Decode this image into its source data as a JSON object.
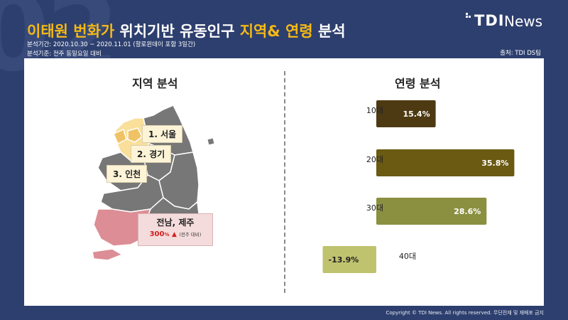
{
  "page": {
    "bg_number": "02",
    "title_highlight_1": "이태원 번화가",
    "title_mid": " 위치기반 유동인구 ",
    "title_highlight_2": "지역& 연령",
    "title_end": " 분석",
    "period": "분석기간: 2020.10.30 ~ 2020.11.01 (할로윈데이 포함 3일간)",
    "basis": "분석기준: 전주 동일요일 대비",
    "source": "출처: TDI DS팀",
    "footer": "Copyright © TDI News. All rights reserved. 무단전재 및 재배포 금지"
  },
  "logo": {
    "tdi": "TDI",
    "news": "News"
  },
  "region": {
    "title": "지역 분석",
    "callouts": [
      "1. 서울",
      "2. 경기",
      "3. 인천"
    ],
    "highlight": {
      "title": "전남, 제주",
      "value": "300",
      "unit": "%",
      "arrow": "▲",
      "note": "(전주 대비)"
    }
  },
  "colors": {
    "map_gray": "#777777",
    "map_border": "#ffffff",
    "map_top_region": "#f0c266",
    "map_light_region": "#f9df9a",
    "map_south_region": "#dc8d95",
    "panel_divider": "#8a8a8a"
  },
  "chart_data": {
    "type": "bar",
    "orientation": "horizontal",
    "title": "연령 분석",
    "categories": [
      "10대",
      "20대",
      "30대",
      "40대"
    ],
    "values": [
      15.4,
      35.8,
      28.6,
      -13.9
    ],
    "labels": [
      "15.4%",
      "35.8%",
      "28.6%",
      "-13.9%"
    ],
    "colors": [
      "#4e3a12",
      "#6a5a12",
      "#8a9040",
      "#bfc36e"
    ],
    "label_colors": [
      "#ffffff",
      "#ffffff",
      "#ffffff",
      "#222222"
    ],
    "grid": false
  }
}
